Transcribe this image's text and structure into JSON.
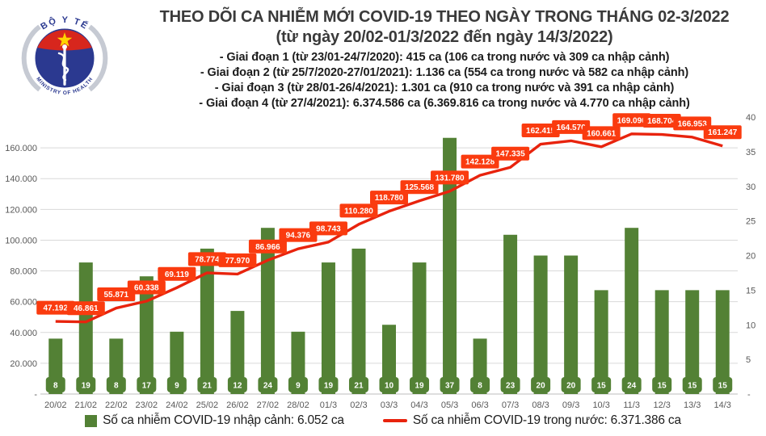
{
  "logo": {
    "arc_top": "BỘ Y TẾ",
    "arc_bottom": "MINISTRY OF HEALTH"
  },
  "header": {
    "title": "THEO DÕI CA NHIỄM MỚI COVID-19 THEO NGÀY TRONG THÁNG 02-3/2022",
    "subtitle": "(từ ngày 20/02-01/3/2022 đến ngày 14/3/2022)",
    "stages": [
      "- Giai đoạn 1 (từ 23/01-24/7/2020): 415 ca (106 ca trong nước và 309 ca nhập cảnh)",
      "- Giai đoạn 2 (từ 25/7/2020-27/01/2021): 1.136 ca (554 ca trong nước và 582 ca nhập cảnh)",
      "- Giai đoạn 3 (từ 28/01-26/4/2021): 1.301 ca (910 ca trong nước và 391 ca nhập cảnh)",
      "- Giai đoạn 4 (từ 27/4/2021): 6.374.586 ca (6.369.816 ca trong nước và 4.770 ca nhập cảnh)"
    ]
  },
  "chart_data": {
    "type": "bar+line combo",
    "title": "THEO DÕI CA NHIỄM MỚI COVID-19 THEO NGÀY TRONG THÁNG 02-3/2022",
    "categories": [
      "20/02",
      "21/02",
      "22/02",
      "23/02",
      "24/02",
      "25/02",
      "26/02",
      "27/02",
      "28/02",
      "01/3",
      "02/3",
      "03/3",
      "04/3",
      "05/3",
      "06/3",
      "07/3",
      "08/3",
      "09/3",
      "10/3",
      "11/3",
      "12/3",
      "13/3",
      "14/3"
    ],
    "series": [
      {
        "name": "Số ca nhiễm COVID-19 nhập cảnh",
        "type": "bar",
        "axis": "right",
        "color": "#538135",
        "values": [
          8,
          19,
          8,
          17,
          9,
          21,
          12,
          24,
          9,
          19,
          21,
          10,
          19,
          37,
          8,
          23,
          20,
          20,
          15,
          24,
          15,
          15,
          15
        ]
      },
      {
        "name": "Số ca nhiễm COVID-19 trong nước",
        "type": "line",
        "axis": "left",
        "color": "#e8230d",
        "label_bg": "#fa3b0f",
        "values": [
          47192,
          46861,
          55871,
          60338,
          69119,
          78774,
          77970,
          86966,
          94376,
          98743,
          110280,
          118780,
          125568,
          131780,
          142128,
          147335,
          162415,
          164576,
          160661,
          169090,
          168704,
          166953,
          161247
        ],
        "labels": [
          "47.192",
          "46.861",
          "55.871",
          "60.338",
          "69.119",
          "78.774",
          "77.970",
          "86.966",
          "94.376",
          "98.743",
          "110.280",
          "118.780",
          "125.568",
          "131.780",
          "142.128",
          "147.335",
          "162.415",
          "164.576",
          "160.661",
          "169.090",
          "168.704",
          "166.953",
          "161.247"
        ]
      }
    ],
    "left_axis": {
      "max": 180000,
      "zero_label": "-",
      "ticks": [
        {
          "value": 20000,
          "label": "20.000"
        },
        {
          "value": 40000,
          "label": "40.000"
        },
        {
          "value": 60000,
          "label": "60.000"
        },
        {
          "value": 80000,
          "label": "80.000"
        },
        {
          "value": 100000,
          "label": "100.000"
        },
        {
          "value": 120000,
          "label": "120.000"
        },
        {
          "value": 140000,
          "label": "140.000"
        },
        {
          "value": 160000,
          "label": "160.000"
        }
      ]
    },
    "right_axis": {
      "max": 40,
      "zero_label": "-",
      "ticks": [
        {
          "value": 5,
          "label": "5"
        },
        {
          "value": 10,
          "label": "10"
        },
        {
          "value": 15,
          "label": "15"
        },
        {
          "value": 20,
          "label": "20"
        },
        {
          "value": 25,
          "label": "25"
        },
        {
          "value": 30,
          "label": "30"
        },
        {
          "value": 35,
          "label": "35"
        },
        {
          "value": 40,
          "label": "40"
        }
      ]
    },
    "grid": true,
    "legend_position": "bottom",
    "legend": [
      {
        "label": "Số ca nhiễm COVID-19 nhập cảnh: 6.052 ca",
        "color": "#538135",
        "swatch": "square"
      },
      {
        "label": "Số ca nhiễm COVID-19 trong nước: 6.371.386 ca",
        "color": "#e8230d",
        "swatch": "line"
      }
    ]
  }
}
